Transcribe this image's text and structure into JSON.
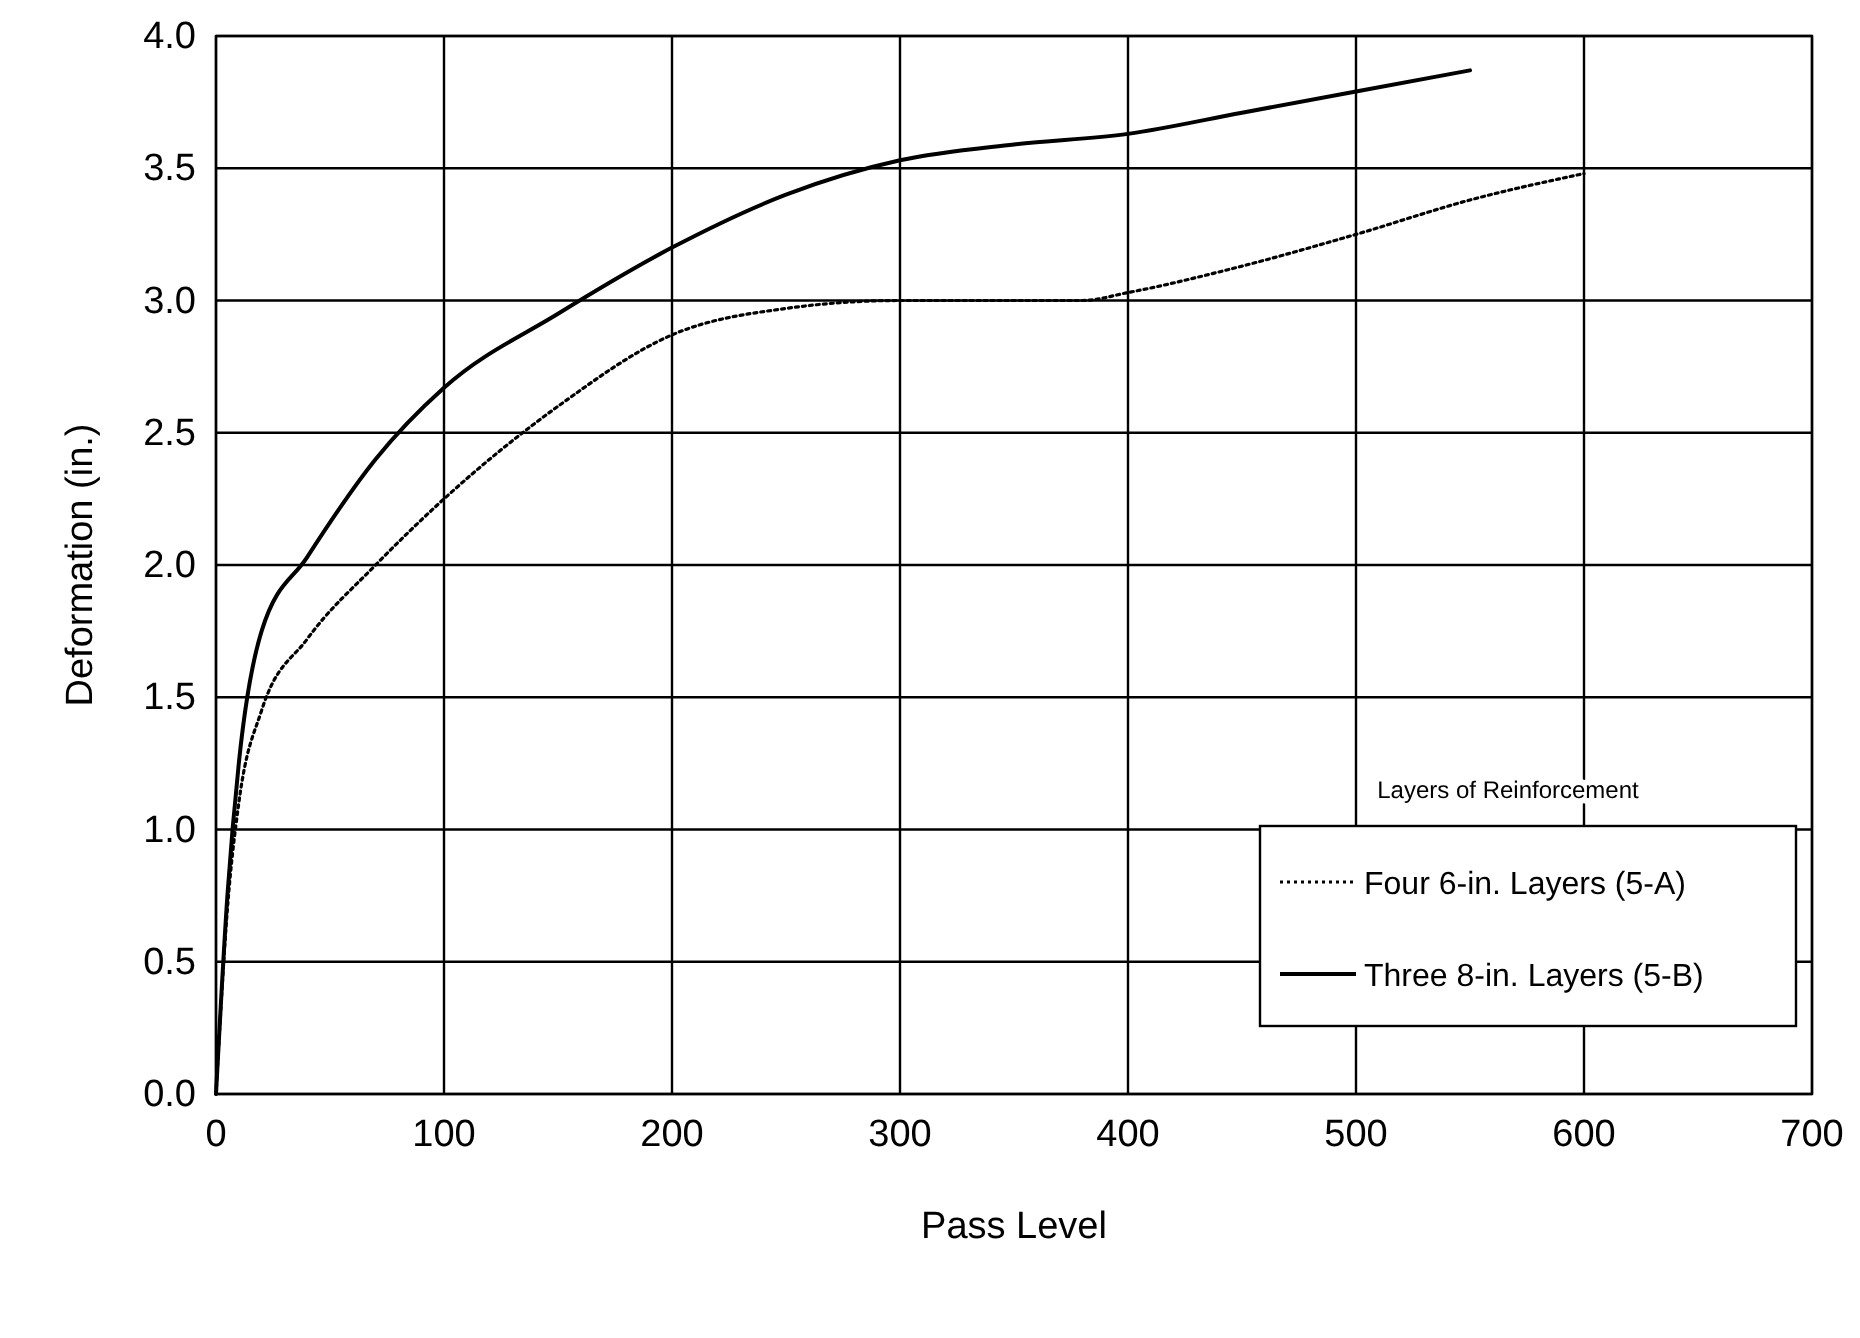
{
  "chart_data": {
    "type": "line",
    "xlabel": "Pass Level",
    "ylabel": "Deformation (in.)",
    "legend_title": "Layers of Reinforcement",
    "xlim": [
      0,
      700
    ],
    "xticks": [
      0,
      100,
      200,
      300,
      400,
      500,
      600,
      700
    ],
    "ylim": [
      0,
      4
    ],
    "yticks": [
      {
        "value": 0,
        "label": "0.0"
      },
      {
        "value": 0.5,
        "label": "0.5"
      },
      {
        "value": 1,
        "label": "1.0"
      },
      {
        "value": 1.5,
        "label": "1.5"
      },
      {
        "value": 2,
        "label": "2.0"
      },
      {
        "value": 2.5,
        "label": "2.5"
      },
      {
        "value": 3,
        "label": "3.0"
      },
      {
        "value": 3.5,
        "label": "3.5"
      },
      {
        "value": 4,
        "label": "4.0"
      }
    ],
    "grid": true,
    "legend": "bottom right",
    "marker": "none",
    "series": [
      {
        "name": "Four 6-in. Layers (5-A)",
        "color": "#000000",
        "line_style": "dotted",
        "x": [
          0,
          5,
          10,
          20,
          40,
          70,
          100,
          150,
          200,
          250,
          300,
          350,
          380,
          400,
          450,
          500,
          550,
          600
        ],
        "values": [
          0,
          0.7,
          1.1,
          1.45,
          1.72,
          2.0,
          2.25,
          2.6,
          2.87,
          2.97,
          3.0,
          3.0,
          3.0,
          3.03,
          3.13,
          3.25,
          3.38,
          3.48
        ]
      },
      {
        "name": "Three 8-in. Layers (5-B)",
        "color": "#000000",
        "line_style": "solid",
        "x": [
          0,
          5,
          10,
          20,
          40,
          70,
          100,
          150,
          200,
          250,
          300,
          350,
          400,
          450,
          500,
          550
        ],
        "values": [
          0,
          0.75,
          1.25,
          1.75,
          2.03,
          2.4,
          2.67,
          2.95,
          3.2,
          3.4,
          3.53,
          3.59,
          3.63,
          3.71,
          3.79,
          3.87
        ]
      }
    ]
  }
}
